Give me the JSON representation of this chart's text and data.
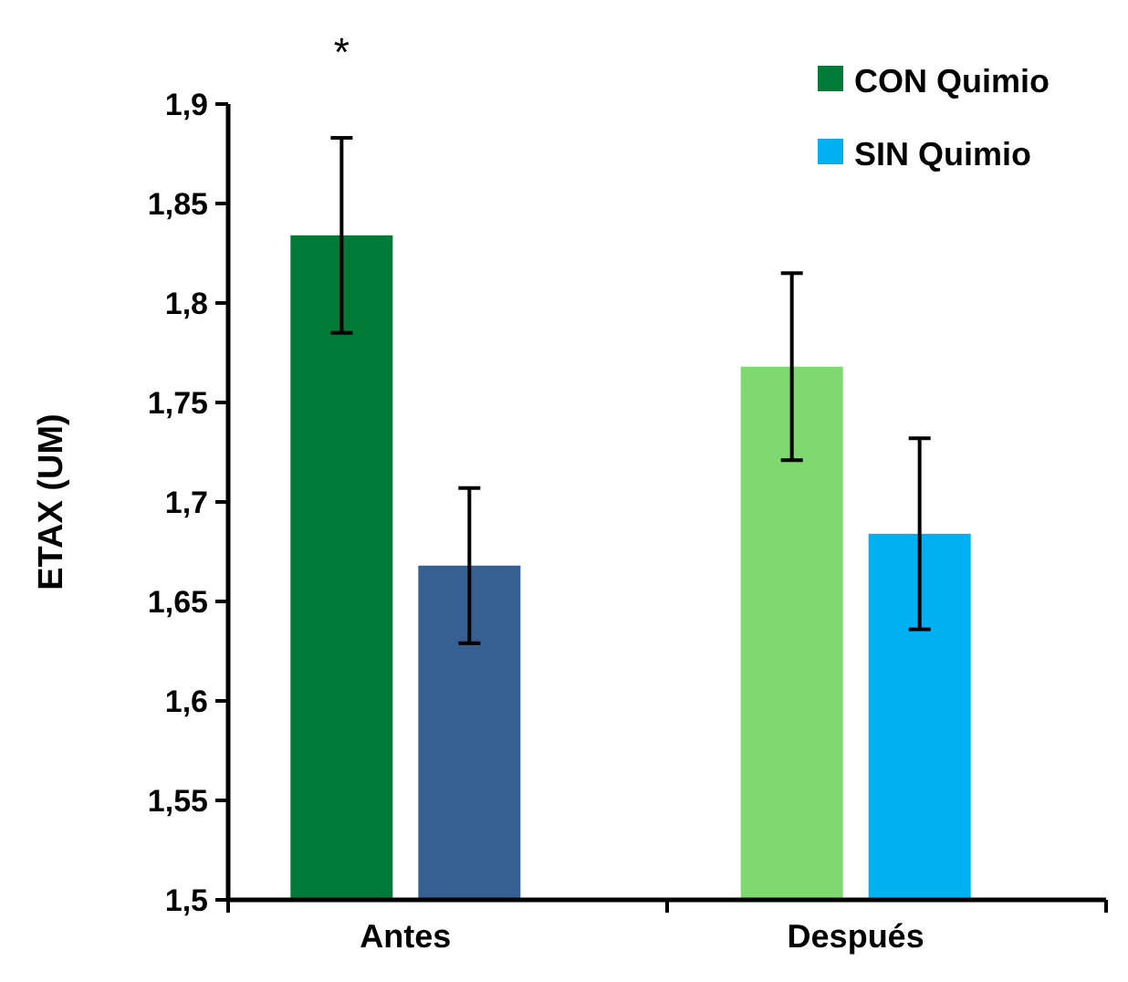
{
  "chart_data": {
    "type": "bar",
    "ylabel": "ETAX (UM)",
    "categories": [
      "Antes",
      "Después"
    ],
    "series": [
      {
        "name": "CON Quimio",
        "color": "#007a37",
        "colors": [
          "#007a37",
          "#80d870"
        ],
        "values": [
          1.834,
          1.768
        ],
        "errors": [
          0.049,
          0.047
        ]
      },
      {
        "name": "SIN Quimio",
        "color": "#00b0f0",
        "colors": [
          "#366092",
          "#00b0f0"
        ],
        "values": [
          1.668,
          1.684
        ],
        "errors": [
          0.039,
          0.048
        ]
      }
    ],
    "ylim": [
      1.5,
      1.9
    ],
    "yticks": [
      {
        "value": 1.5,
        "label": "1,5"
      },
      {
        "value": 1.55,
        "label": "1,55"
      },
      {
        "value": 1.6,
        "label": "1,6"
      },
      {
        "value": 1.65,
        "label": "1,65"
      },
      {
        "value": 1.7,
        "label": "1,7"
      },
      {
        "value": 1.75,
        "label": "1,75"
      },
      {
        "value": 1.8,
        "label": "1,8"
      },
      {
        "value": 1.85,
        "label": "1,85"
      },
      {
        "value": 1.9,
        "label": "1,9"
      }
    ],
    "annotations": [
      "*"
    ],
    "legend": "top right",
    "grid": false
  }
}
